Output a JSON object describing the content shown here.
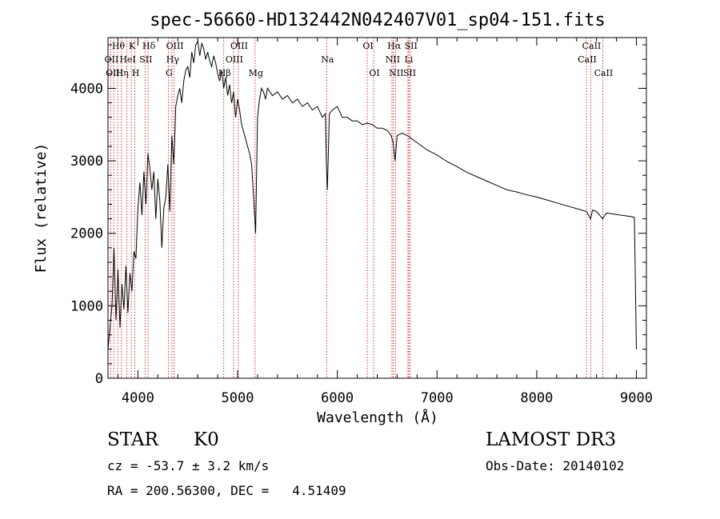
{
  "chart_data": {
    "type": "line",
    "title": "spec-56660-HD132442N042407V01_sp04-151.fits",
    "xlabel": "Wavelength (Å)",
    "ylabel": "Flux (relative)",
    "xlim": [
      3700,
      9100
    ],
    "ylim": [
      0,
      4700
    ],
    "xticks": [
      4000,
      5000,
      6000,
      7000,
      8000,
      9000
    ],
    "yticks": [
      0,
      1000,
      2000,
      3000,
      4000
    ],
    "grid": false,
    "series": [
      {
        "x": [
          3700,
          3720,
          3740,
          3760,
          3780,
          3800,
          3820,
          3840,
          3860,
          3880,
          3900,
          3920,
          3940,
          3960,
          3980,
          4000,
          4020,
          4040,
          4060,
          4080,
          4100,
          4120,
          4140,
          4160,
          4180,
          4200,
          4220,
          4240,
          4260,
          4280,
          4300,
          4320,
          4340,
          4360,
          4380,
          4400,
          4420,
          4440,
          4460,
          4480,
          4500,
          4520,
          4540,
          4560,
          4580,
          4600,
          4620,
          4640,
          4660,
          4680,
          4700,
          4720,
          4740,
          4760,
          4780,
          4800,
          4820,
          4840,
          4860,
          4880,
          4900,
          4920,
          4940,
          4960,
          4980,
          5000,
          5020,
          5040,
          5060,
          5080,
          5100,
          5120,
          5140,
          5160,
          5180,
          5200,
          5220,
          5240,
          5260,
          5280,
          5300,
          5350,
          5400,
          5450,
          5500,
          5550,
          5600,
          5650,
          5700,
          5750,
          5800,
          5850,
          5880,
          5890,
          5900,
          5920,
          5950,
          6000,
          6050,
          6100,
          6150,
          6200,
          6250,
          6300,
          6350,
          6400,
          6450,
          6500,
          6540,
          6560,
          6580,
          6600,
          6650,
          6700,
          6750,
          6800,
          6900,
          7000,
          7100,
          7200,
          7300,
          7400,
          7500,
          7600,
          7700,
          7800,
          7900,
          8000,
          8100,
          8200,
          8300,
          8400,
          8500,
          8540,
          8560,
          8600,
          8660,
          8700,
          8800,
          8900,
          8950,
          8980,
          9000
        ],
        "y": [
          400,
          700,
          1000,
          1800,
          800,
          1500,
          700,
          1300,
          950,
          1550,
          900,
          1450,
          1200,
          1750,
          1650,
          2350,
          2700,
          2250,
          2850,
          2400,
          3100,
          2900,
          2600,
          2850,
          2200,
          2750,
          2450,
          1800,
          2350,
          2500,
          2950,
          2300,
          3350,
          2950,
          3750,
          3900,
          4000,
          3800,
          4100,
          4250,
          4300,
          4150,
          4500,
          4350,
          4600,
          4650,
          4450,
          4620,
          4550,
          4400,
          4500,
          4380,
          4300,
          4450,
          4350,
          4200,
          4100,
          4250,
          4000,
          4150,
          3900,
          4050,
          3800,
          3950,
          3600,
          3850,
          3700,
          3500,
          3400,
          3300,
          3200,
          3100,
          2950,
          2500,
          2000,
          3600,
          3850,
          4000,
          3950,
          3850,
          4000,
          3900,
          3950,
          3850,
          3900,
          3800,
          3850,
          3750,
          3800,
          3700,
          3750,
          3600,
          3650,
          3000,
          2600,
          3650,
          3700,
          3750,
          3600,
          3600,
          3550,
          3550,
          3500,
          3520,
          3500,
          3450,
          3450,
          3420,
          3350,
          3250,
          3000,
          3350,
          3380,
          3350,
          3300,
          3250,
          3150,
          3080,
          2990,
          2920,
          2840,
          2780,
          2720,
          2660,
          2600,
          2570,
          2530,
          2500,
          2460,
          2420,
          2380,
          2340,
          2300,
          2200,
          2320,
          2300,
          2200,
          2280,
          2260,
          2240,
          2230,
          2220,
          400
        ]
      }
    ],
    "annotations": [
      {
        "label": "Hθ",
        "x": 3797,
        "row": 0
      },
      {
        "label": "K",
        "x": 3934,
        "row": 0
      },
      {
        "label": "Hδ",
        "x": 4102,
        "row": 0
      },
      {
        "label": "OIII",
        "x": 4363,
        "row": 0
      },
      {
        "label": "OIII",
        "x": 5007,
        "row": 0
      },
      {
        "label": "OI",
        "x": 6300,
        "row": 0
      },
      {
        "label": "Hα",
        "x": 6563,
        "row": 0
      },
      {
        "label": "SII",
        "x": 6731,
        "row": 0
      },
      {
        "label": "CaII",
        "x": 8542,
        "row": 0
      },
      {
        "label": "OII",
        "x": 3727,
        "row": 1
      },
      {
        "label": "HeI",
        "x": 3889,
        "row": 1
      },
      {
        "label": "SII",
        "x": 4072,
        "row": 1
      },
      {
        "label": "Hγ",
        "x": 4341,
        "row": 1
      },
      {
        "label": "OIII",
        "x": 4959,
        "row": 1
      },
      {
        "label": "Na",
        "x": 5893,
        "row": 1
      },
      {
        "label": "NII",
        "x": 6548,
        "row": 1
      },
      {
        "label": "Li",
        "x": 6708,
        "row": 1
      },
      {
        "label": "CaII",
        "x": 8498,
        "row": 1
      },
      {
        "label": "OIII",
        "x": 3757,
        "row": 2
      },
      {
        "label": "Hη",
        "x": 3835,
        "row": 2
      },
      {
        "label": "H",
        "x": 3969,
        "row": 2
      },
      {
        "label": "G",
        "x": 4305,
        "row": 2
      },
      {
        "label": "Hβ",
        "x": 4861,
        "row": 2
      },
      {
        "label": "Mg",
        "x": 5175,
        "row": 2
      },
      {
        "label": "OI",
        "x": 6364,
        "row": 2
      },
      {
        "label": "NII",
        "x": 6583,
        "row": 2
      },
      {
        "label": "SII",
        "x": 6717,
        "row": 2
      },
      {
        "label": "CaII",
        "x": 8662,
        "row": 2
      }
    ]
  },
  "info": {
    "object_type": "STAR",
    "subclass": "K0",
    "survey": "LAMOST DR3",
    "cz": "cz = -53.7 ± 3.2 km/s",
    "obs_date": "Obs-Date: 20140102",
    "coords": "RA = 200.56300, DEC =   4.51409"
  },
  "colors": {
    "spectrum": "#000000",
    "line_marker": "#cc0000",
    "axis": "#000000"
  }
}
